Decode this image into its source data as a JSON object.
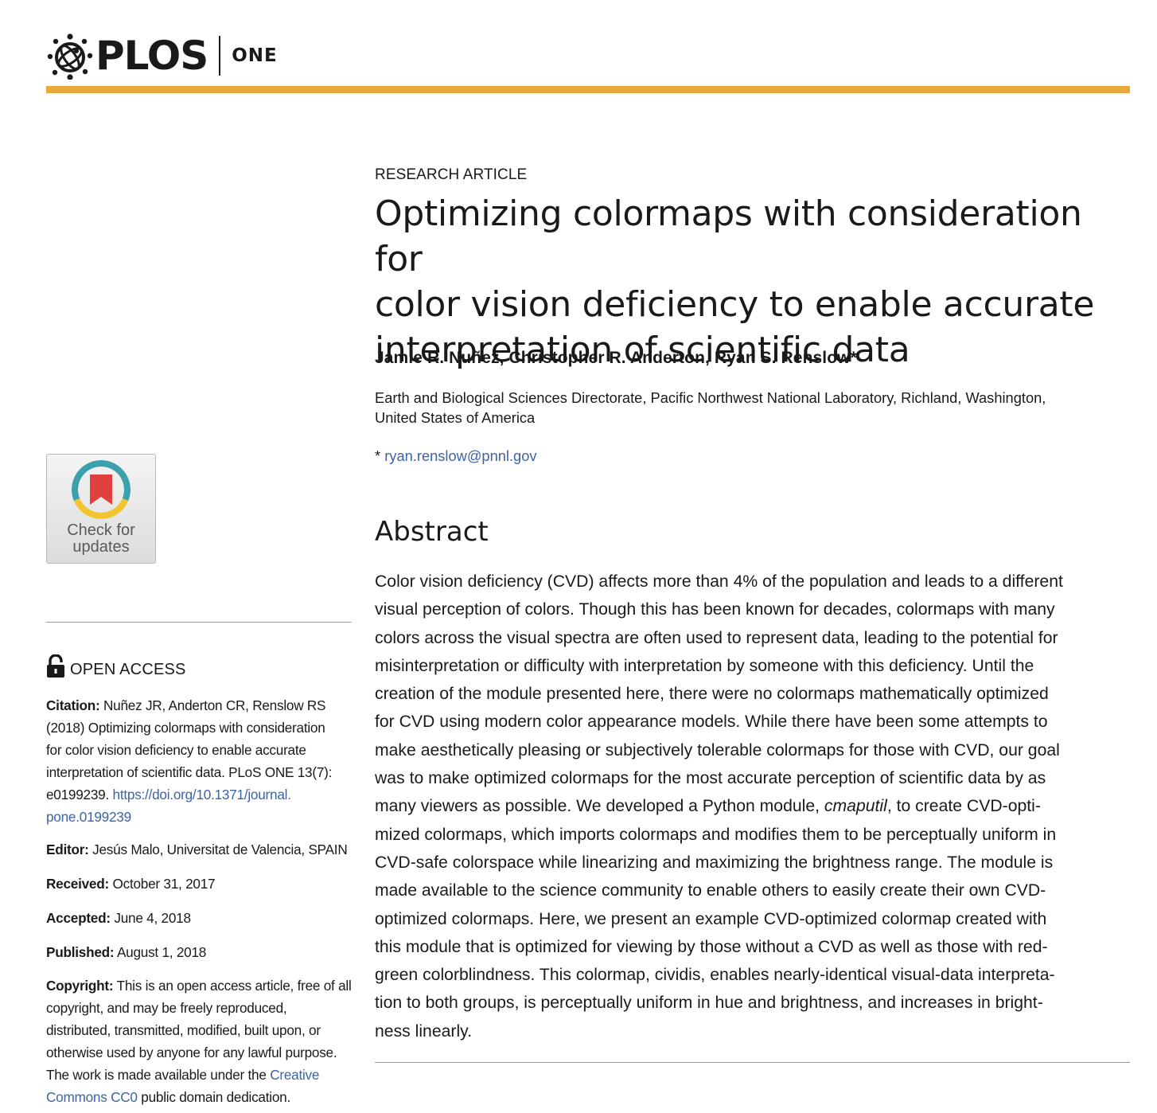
{
  "header": {
    "brand": "PLOS",
    "journal": "ONE",
    "accent_color": "#eaa73c"
  },
  "badge": {
    "label_line1": "Check for",
    "label_line2": "updates",
    "icon": "check-for-updates-bookmark-icon"
  },
  "open_access": {
    "label": "OPEN ACCESS",
    "icon": "open-padlock-icon"
  },
  "citation": {
    "label": "Citation:",
    "lines": [
      "Nuñez JR, Anderton CR, Renslow RS",
      "(2018) Optimizing colormaps with consideration",
      "for color vision deficiency to enable accurate",
      "interpretation of scientific data. PLoS ONE 13(7):"
    ],
    "last_prefix": "e0199239.",
    "doi_line1": "https://doi.org/10.1371/journal.",
    "doi_line2": "pone.0199239"
  },
  "editor": {
    "label": "Editor:",
    "value": "Jesús Malo, Universitat de Valencia, SPAIN"
  },
  "received": {
    "label": "Received:",
    "value": "October 31, 2017"
  },
  "accepted": {
    "label": "Accepted:",
    "value": "June 4, 2018"
  },
  "published": {
    "label": "Published:",
    "value": "August 1, 2018"
  },
  "copyright": {
    "label": "Copyright:",
    "lines": [
      "This is an open access article, free of all",
      "copyright, and may be freely reproduced,",
      "distributed, transmitted, modified, built upon, or",
      "otherwise used by anyone for any lawful purpose."
    ],
    "line5_prefix": "The work is made available under the",
    "link_part1": "Creative",
    "link_part2": "Commons CC0",
    "line6_suffix": "public domain dedication."
  },
  "article": {
    "kicker": "RESEARCH ARTICLE",
    "title_lines": [
      "Optimizing colormaps with consideration for",
      "color vision deficiency to enable accurate",
      "interpretation of scientific data"
    ],
    "authors": "Jamie R. Nuñez, Christopher R. Anderton, Ryan S. Renslow*",
    "affiliation_lines": [
      "Earth and Biological Sciences Directorate, Pacific Northwest National Laboratory, Richland, Washington,",
      "United States of America"
    ],
    "email_prefix": "*",
    "email": "ryan.renslow@pnnl.gov"
  },
  "abstract": {
    "heading": "Abstract",
    "lines": [
      "Color vision deficiency (CVD) affects more than 4% of the population and leads to a different",
      "visual perception of colors. Though this has been known for decades, colormaps with many",
      "colors across the visual spectra are often used to represent data, leading to the potential for",
      "misinterpretation or difficulty with interpretation by someone with this deficiency. Until the",
      "creation of the module presented here, there were no colormaps mathematically optimized",
      "for CVD using modern color appearance models. While there have been some attempts to",
      "make aesthetically pleasing or subjectively tolerable colormaps for those with CVD, our goal",
      "was to make optimized colormaps for the most accurate perception of scientific data by as"
    ],
    "line9_prefix": "many viewers as possible. We developed a Python module,",
    "line9_italic": "cmaputil",
    "line9_suffix": ", to create CVD-opti-",
    "lines_rest": [
      "mized colormaps, which imports colormaps and modifies them to be perceptually uniform in",
      "CVD-safe colorspace while linearizing and maximizing the brightness range. The module is",
      "made available to the science community to enable others to easily create their own CVD-",
      "optimized colormaps. Here, we present an example CVD-optimized colormap created with",
      "this module that is optimized for viewing by those without a CVD as well as those with red-",
      "green colorblindness. This colormap, cividis, enables nearly-identical visual-data interpreta-",
      "tion to both groups, is perceptually uniform in hue and brightness, and increases in bright-",
      "ness linearly."
    ]
  }
}
